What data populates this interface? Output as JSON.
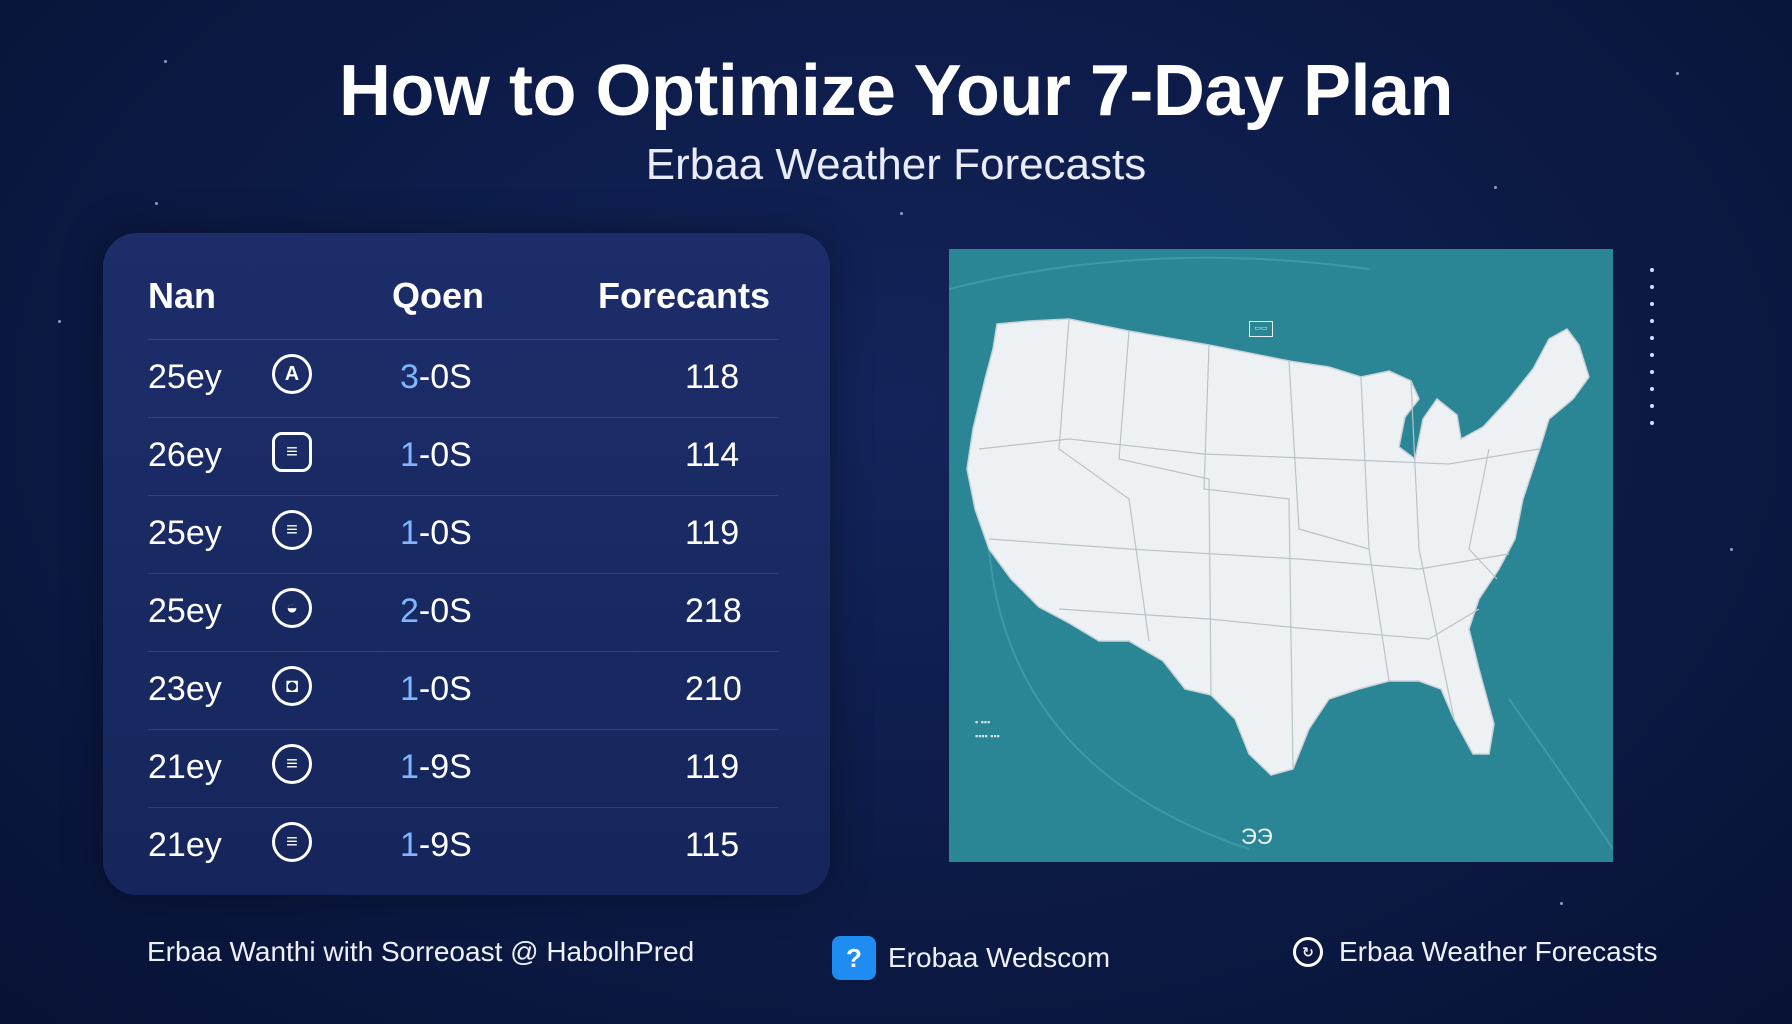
{
  "header": {
    "title": "How to Optimize Your 7-Day Plan",
    "subtitle": "Erbaa Weather Forecasts"
  },
  "table": {
    "columns": [
      "Nan",
      "Qoen",
      "Forecants"
    ],
    "rows": [
      {
        "day": "25ey",
        "icon": "a-circle-icon",
        "glyph": "A",
        "range": "3-0S",
        "forecast": "118"
      },
      {
        "day": "26ey",
        "icon": "chat-bubble-icon",
        "glyph": "≡",
        "range": "1-0S",
        "forecast": "114"
      },
      {
        "day": "25ey",
        "icon": "list-circle-icon",
        "glyph": "≡",
        "range": "1-0S",
        "forecast": "119"
      },
      {
        "day": "25ey",
        "icon": "shield-circle-icon",
        "glyph": "◒",
        "range": "2-0S",
        "forecast": "218"
      },
      {
        "day": "23ey",
        "icon": "badge-circle-icon",
        "glyph": "◘",
        "range": "1-0S",
        "forecast": "210"
      },
      {
        "day": "21ey",
        "icon": "list-circle-icon",
        "glyph": "≡",
        "range": "1-9S",
        "forecast": "119"
      },
      {
        "day": "21ey",
        "icon": "list-circle-icon",
        "glyph": "≡",
        "range": "1-9S",
        "forecast": "115"
      }
    ]
  },
  "map": {
    "badge": "ЭЭ",
    "top_label": "▭▭",
    "legend_lines": [
      "▪ ▪▪▪",
      "▪▪▪▪ ▪▪▪"
    ]
  },
  "footer": {
    "left": "Erbaa Wanthi with Sorreoast @ HabolhPred",
    "center": "Erobaa Wedscom",
    "center_icon_glyph": "?",
    "right": "Erbaa Weather Forecasts",
    "right_icon_glyph": "↻"
  },
  "colors": {
    "background": "#0c1a46",
    "panel": "#1c2d6a",
    "map_water": "#2a8595",
    "map_land": "#eef1f3",
    "accent_blue": "#7fb6ff",
    "app_icon": "#1e8cf0"
  }
}
